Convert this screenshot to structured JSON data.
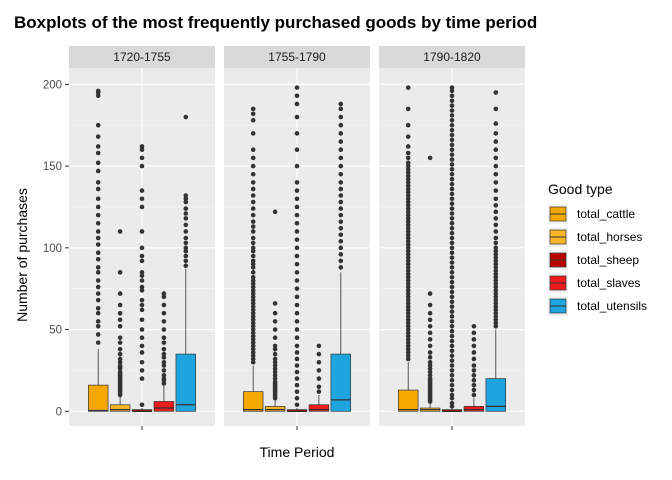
{
  "chart_data": {
    "type": "boxplot",
    "title": "Boxplots of the most frequently purchased goods by time period",
    "xlabel": "Time Period",
    "ylabel": "Number of purchases",
    "ylim": [
      -9,
      210
    ],
    "yticks": [
      0,
      50,
      100,
      150,
      200
    ],
    "grid": true,
    "legend": {
      "title": "Good type",
      "position": "right"
    },
    "series": [
      {
        "name": "total_cattle",
        "color": "#F5A800"
      },
      {
        "name": "total_horses",
        "color": "#F9B428"
      },
      {
        "name": "total_sheep",
        "color": "#B80000"
      },
      {
        "name": "total_slaves",
        "color": "#EE1C1C"
      },
      {
        "name": "total_utensils",
        "color": "#1EA5E0"
      }
    ],
    "panels": [
      {
        "label": "1720-1755",
        "boxes": [
          {
            "series": "total_cattle",
            "q1": 0,
            "median": 0.5,
            "q3": 16,
            "whisker_low": 0,
            "whisker_high": 38,
            "outliers": [
              42,
              47,
              52,
              55,
              60,
              63,
              68,
              72,
              76,
              80,
              85,
              88,
              93,
              97,
              102,
              106,
              110,
              115,
              120,
              125,
              130,
              136,
              140,
              147,
              152,
              158,
              162,
              168,
              175,
              193,
              195,
              196
            ]
          },
          {
            "series": "total_horses",
            "q1": 0,
            "median": 1,
            "q3": 4,
            "whisker_low": 0,
            "whisker_high": 9,
            "outliers": [
              10,
              11,
              12,
              13,
              14,
              15,
              16,
              17,
              18,
              19,
              20,
              21,
              22,
              23,
              24,
              26,
              27,
              28,
              30,
              32,
              35,
              38,
              42,
              45,
              52,
              56,
              60,
              65,
              72,
              85,
              110
            ]
          },
          {
            "series": "total_sheep",
            "q1": 0,
            "median": 0,
            "q3": 1,
            "whisker_low": 0,
            "whisker_high": 2,
            "outliers": [
              4,
              20,
              25,
              30,
              36,
              40,
              45,
              50,
              56,
              62,
              65,
              68,
              74,
              76,
              80,
              83,
              85,
              92,
              95,
              100,
              110,
              125,
              130,
              135,
              150,
              155,
              160,
              162
            ]
          },
          {
            "series": "total_slaves",
            "q1": 0,
            "median": 2,
            "q3": 6,
            "whisker_low": 0,
            "whisker_high": 16,
            "outliers": [
              17,
              19,
              20,
              22,
              25,
              28,
              30,
              33,
              35,
              38,
              42,
              45,
              50,
              55,
              60,
              65,
              70,
              72
            ]
          },
          {
            "series": "total_utensils",
            "q1": 0,
            "median": 4,
            "q3": 35,
            "whisker_low": 0,
            "whisker_high": 87,
            "outliers": [
              89,
              92,
              95,
              98,
              100,
              103,
              106,
              110,
              114,
              118,
              121,
              124,
              128,
              130,
              132,
              180
            ]
          }
        ]
      },
      {
        "label": "1755-1790",
        "boxes": [
          {
            "series": "total_cattle",
            "q1": 0,
            "median": 1,
            "q3": 12,
            "whisker_low": 0,
            "whisker_high": 28,
            "outliers": [
              30,
              32,
              34,
              36,
              38,
              40,
              42,
              44,
              46,
              48,
              50,
              52,
              54,
              56,
              58,
              60,
              62,
              64,
              66,
              68,
              70,
              72,
              74,
              76,
              78,
              80,
              82,
              85,
              88,
              90,
              92,
              95,
              98,
              100,
              103,
              106,
              110,
              113,
              116,
              120,
              124,
              128,
              132,
              136,
              140,
              145,
              150,
              155,
              160,
              170,
              178,
              182,
              185
            ]
          },
          {
            "series": "total_horses",
            "q1": 0,
            "median": 1,
            "q3": 3,
            "whisker_low": 0,
            "whisker_high": 7,
            "outliers": [
              8,
              9,
              10,
              11,
              12,
              13,
              14,
              15,
              16,
              17,
              18,
              20,
              22,
              24,
              26,
              28,
              30,
              32,
              35,
              38,
              40,
              45,
              50,
              55,
              60,
              66,
              122
            ]
          },
          {
            "series": "total_sheep",
            "q1": 0,
            "median": 0,
            "q3": 1,
            "whisker_low": 0,
            "whisker_high": 2,
            "outliers": [
              4,
              8,
              12,
              16,
              20,
              24,
              28,
              32,
              36,
              40,
              45,
              50,
              55,
              60,
              65,
              70,
              75,
              80,
              85,
              90,
              95,
              100,
              105,
              110,
              115,
              120,
              125,
              130,
              135,
              140,
              150,
              160,
              170,
              180,
              188,
              193,
              198
            ]
          },
          {
            "series": "total_slaves",
            "q1": 0,
            "median": 1,
            "q3": 4,
            "whisker_low": 0,
            "whisker_high": 10,
            "outliers": [
              12,
              15,
              20,
              25,
              30,
              35,
              40
            ]
          },
          {
            "series": "total_utensils",
            "q1": 0,
            "median": 7,
            "q3": 35,
            "whisker_low": 0,
            "whisker_high": 85,
            "outliers": [
              88,
              92,
              96,
              100,
              104,
              108,
              112,
              116,
              120,
              124,
              128,
              132,
              136,
              140,
              145,
              150,
              155,
              160,
              165,
              170,
              175,
              180,
              185,
              188
            ]
          }
        ]
      },
      {
        "label": "1790-1820",
        "boxes": [
          {
            "series": "total_cattle",
            "q1": 0,
            "median": 1,
            "q3": 13,
            "whisker_low": 0,
            "whisker_high": 30,
            "outliers": [
              32,
              34,
              36,
              38,
              40,
              42,
              44,
              46,
              48,
              50,
              52,
              54,
              56,
              58,
              60,
              62,
              64,
              66,
              68,
              70,
              72,
              74,
              76,
              78,
              80,
              82,
              84,
              86,
              88,
              90,
              92,
              94,
              96,
              98,
              100,
              102,
              104,
              106,
              108,
              110,
              112,
              114,
              116,
              118,
              120,
              122,
              124,
              126,
              128,
              130,
              132,
              134,
              136,
              138,
              140,
              142,
              144,
              146,
              148,
              150,
              152,
              155,
              158,
              162,
              168,
              175,
              185,
              198
            ]
          },
          {
            "series": "total_horses",
            "q1": 0,
            "median": 1,
            "q3": 2,
            "whisker_low": 0,
            "whisker_high": 5,
            "outliers": [
              6,
              7,
              8,
              9,
              10,
              11,
              12,
              13,
              14,
              15,
              16,
              17,
              18,
              19,
              20,
              22,
              24,
              26,
              28,
              30,
              33,
              36,
              40,
              44,
              48,
              52,
              56,
              60,
              65,
              72,
              155
            ]
          },
          {
            "series": "total_sheep",
            "q1": 0,
            "median": 0,
            "q3": 1,
            "whisker_low": 0,
            "whisker_high": 2,
            "outliers": [
              3,
              5,
              8,
              10,
              13,
              16,
              19,
              22,
              25,
              28,
              31,
              34,
              37,
              40,
              43,
              46,
              49,
              52,
              55,
              58,
              61,
              64,
              67,
              70,
              73,
              76,
              79,
              82,
              85,
              88,
              91,
              94,
              97,
              100,
              103,
              106,
              109,
              112,
              115,
              118,
              121,
              124,
              127,
              130,
              133,
              136,
              139,
              142,
              145,
              148,
              151,
              154,
              157,
              160,
              163,
              166,
              169,
              172,
              175,
              178,
              181,
              184,
              187,
              190,
              193,
              196,
              198
            ]
          },
          {
            "series": "total_slaves",
            "q1": 0,
            "median": 1,
            "q3": 3,
            "whisker_low": 0,
            "whisker_high": 8,
            "outliers": [
              10,
              13,
              16,
              19,
              22,
              25,
              28,
              32,
              36,
              40,
              44,
              48,
              52
            ]
          },
          {
            "series": "total_utensils",
            "q1": 0,
            "median": 3,
            "q3": 20,
            "whisker_low": 0,
            "whisker_high": 50,
            "outliers": [
              52,
              54,
              56,
              58,
              60,
              62,
              64,
              66,
              68,
              70,
              72,
              74,
              76,
              78,
              80,
              82,
              84,
              86,
              88,
              90,
              92,
              94,
              96,
              98,
              100,
              103,
              106,
              110,
              114,
              118,
              122,
              126,
              130,
              135,
              140,
              145,
              150,
              155,
              160,
              165,
              170,
              176,
              185,
              195
            ]
          }
        ]
      }
    ]
  }
}
